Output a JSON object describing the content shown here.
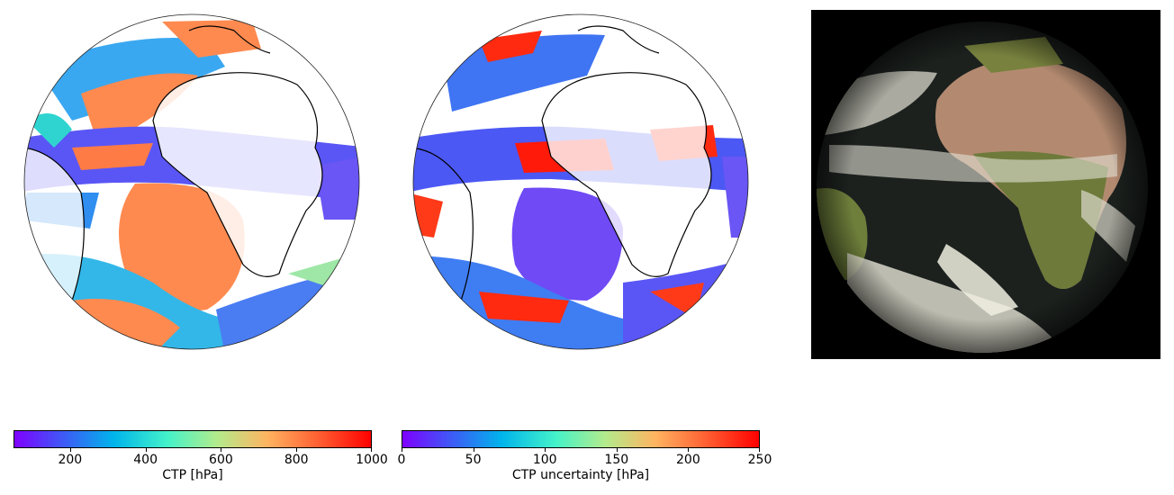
{
  "panels": [
    {
      "id": "ctp",
      "colorbar": {
        "label": "CTP [hPa]",
        "range": [
          50,
          1000
        ],
        "ticks": [
          200,
          400,
          600,
          800,
          1000
        ],
        "colormap": "rainbow"
      }
    },
    {
      "id": "ctp_uncertainty",
      "colorbar": {
        "label": "CTP uncertainty [hPa]",
        "range": [
          0,
          250
        ],
        "ticks": [
          0,
          50,
          100,
          150,
          200,
          250
        ],
        "colormap": "rainbow"
      }
    },
    {
      "id": "rgb_composite",
      "background": "#000000"
    }
  ],
  "colors": {
    "rainbow": [
      "#7f00ff",
      "#3d5bf6",
      "#00b5eb",
      "#44f2c9",
      "#b4eb8b",
      "#ffb360",
      "#ff5a2f",
      "#ff0000"
    ],
    "coastline": "#000000",
    "desert": "#b98a72",
    "vegetation": "#6f7f3a",
    "ocean_dark": "#1a1f1c",
    "cloud": "#e8e6d8"
  }
}
